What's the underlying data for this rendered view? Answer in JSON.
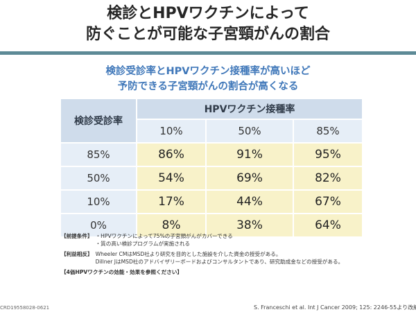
{
  "title": {
    "line1": "検診とHPVワクチンによって",
    "line2": "防ぐことが可能な子宮頸がんの割合"
  },
  "subtitle": {
    "line1": "検診受診率とHPVワクチン接種率が高いほど",
    "line2": "予防できる子宮頸がんの割合が高くなる"
  },
  "table": {
    "row_header": "検診受診率",
    "col_header": "HPVワクチン接種率",
    "col_labels": [
      "10%",
      "50%",
      "85%"
    ],
    "rows": [
      {
        "label": "85%",
        "values": [
          "86%",
          "91%",
          "95%"
        ]
      },
      {
        "label": "50%",
        "values": [
          "54%",
          "69%",
          "82%"
        ]
      },
      {
        "label": "10%",
        "values": [
          "17%",
          "44%",
          "67%"
        ]
      },
      {
        "label": "0%",
        "values": [
          "8%",
          "38%",
          "64%"
        ]
      }
    ]
  },
  "notes": {
    "premise_tag": "【前提条件】",
    "premise_lines": [
      "・HPVワクチンによって75%の子宮頸がんがカバーできる",
      "・質の高い検診プログラムが実施される"
    ],
    "coi_tag": "【利益相反】",
    "coi_lines": [
      "Wheeler CMはMSD社より研究を目的とした施設を介した資金の授受がある。",
      "Dillner JはMSD社のアドバイザリーボードおよびコンサルタントであり、研究助成金などの授受がある。"
    ],
    "reference": "【4価HPVワクチンの効能・効果を参照ください】"
  },
  "footer": {
    "doc_id": "CRD19558028-0621",
    "citation": "S. Franceschi et al. Int J Cancer 2009; 125: 2246-55より改編"
  }
}
